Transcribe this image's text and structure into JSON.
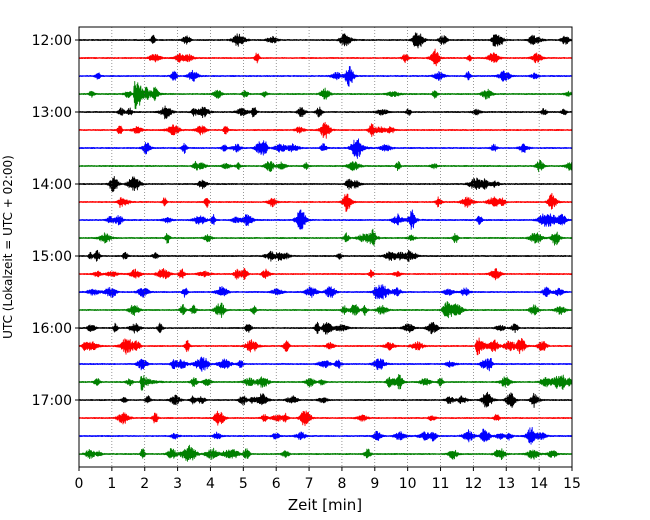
{
  "chart_data": {
    "type": "line",
    "title": "",
    "xlabel": "Zeit  [min]",
    "ylabel": "UTC (Lokalzeit = UTC + 02:00)",
    "xlim": [
      0,
      15
    ],
    "x_ticks": [
      "0",
      "1",
      "2",
      "3",
      "4",
      "5",
      "6",
      "7",
      "8",
      "9",
      "10",
      "11",
      "12",
      "13",
      "14",
      "15"
    ],
    "y_tick_labels": [
      "12:00",
      "13:00",
      "14:00",
      "15:00",
      "16:00",
      "17:00"
    ],
    "trace_interval_minutes": 15,
    "grid": "vertical dotted at each minute",
    "legend": "none",
    "trace_colors": [
      "#000000",
      "#ff0000",
      "#0000ff",
      "#008000"
    ],
    "series": [
      {
        "start": "12:00",
        "color": "#000000"
      },
      {
        "start": "12:15",
        "color": "#ff0000"
      },
      {
        "start": "12:30",
        "color": "#0000ff"
      },
      {
        "start": "12:45",
        "color": "#008000",
        "event_minute": 1.7,
        "event_amplitude": 1.0
      },
      {
        "start": "13:00",
        "color": "#000000"
      },
      {
        "start": "13:15",
        "color": "#ff0000"
      },
      {
        "start": "13:30",
        "color": "#0000ff"
      },
      {
        "start": "13:45",
        "color": "#008000"
      },
      {
        "start": "14:00",
        "color": "#000000"
      },
      {
        "start": "14:15",
        "color": "#ff0000"
      },
      {
        "start": "14:30",
        "color": "#0000ff",
        "event_minute": 9.7,
        "event_amplitude": 0.3
      },
      {
        "start": "14:45",
        "color": "#008000"
      },
      {
        "start": "15:00",
        "color": "#000000"
      },
      {
        "start": "15:15",
        "color": "#ff0000"
      },
      {
        "start": "15:30",
        "color": "#0000ff",
        "event_minute": 9.0,
        "event_amplitude": 0.3
      },
      {
        "start": "15:45",
        "color": "#008000"
      },
      {
        "start": "16:00",
        "color": "#000000"
      },
      {
        "start": "16:15",
        "color": "#ff0000",
        "event_minute": 12.1,
        "event_amplitude": 0.75
      },
      {
        "start": "16:30",
        "color": "#0000ff"
      },
      {
        "start": "16:45",
        "color": "#008000",
        "event_minute": 1.9,
        "event_amplitude": 0.6
      },
      {
        "start": "17:00",
        "color": "#000000"
      },
      {
        "start": "17:15",
        "color": "#ff0000"
      },
      {
        "start": "17:30",
        "color": "#0000ff"
      },
      {
        "start": "17:45",
        "color": "#008000"
      }
    ]
  }
}
